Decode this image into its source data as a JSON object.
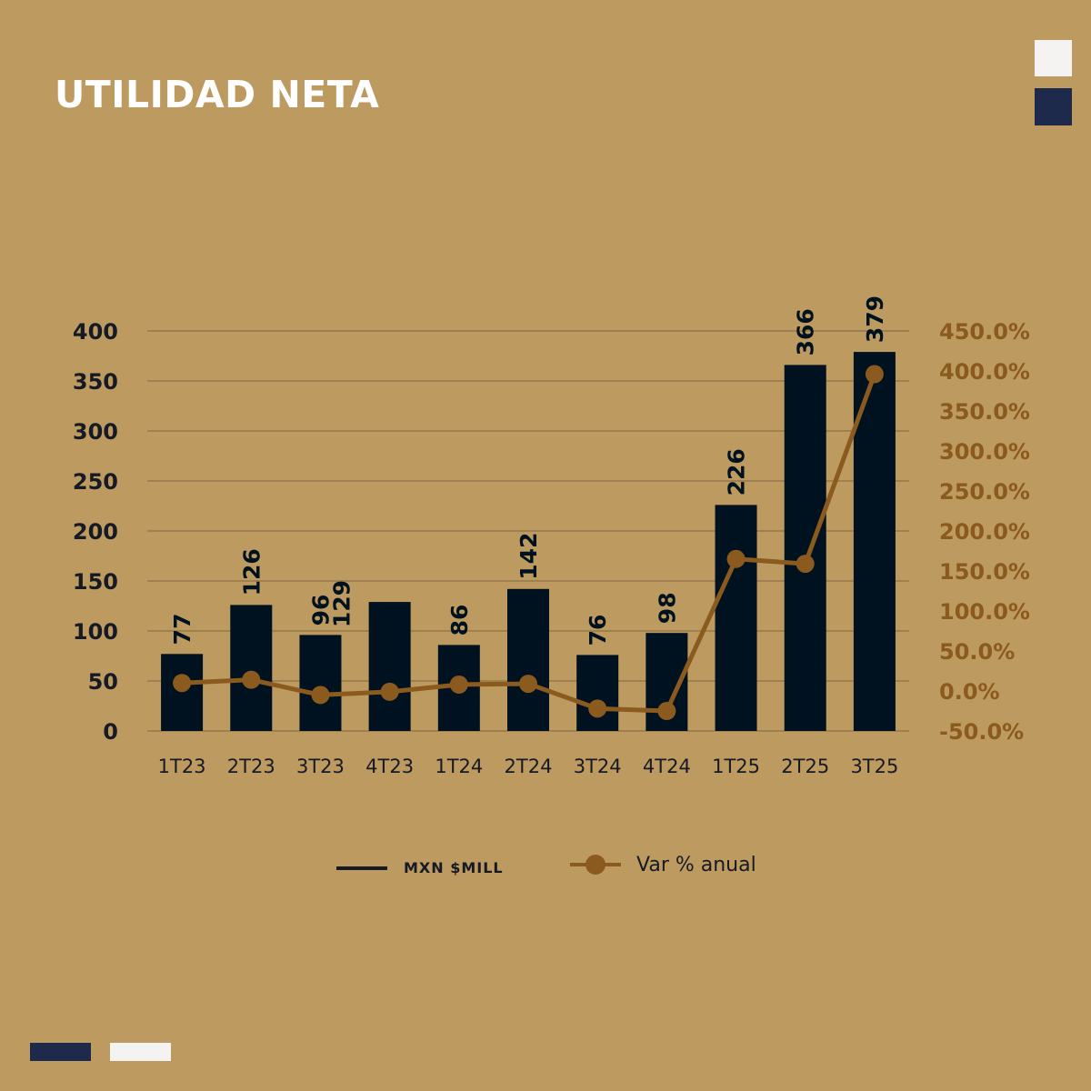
{
  "title": "UTILIDAD NETA",
  "colors": {
    "background": "#bd9a5f",
    "bar": "#00111f",
    "line": "#8a5a1e",
    "axis_left": "#151a25",
    "axis_right": "#8a5a1e",
    "grid": "#9f8150",
    "accent_navy": "#1d2a4b",
    "accent_white": "#f4f3f1"
  },
  "legend": {
    "bar_label": "MXN $MILL",
    "line_label": "Var % anual"
  },
  "chart_data": {
    "type": "bar",
    "categories": [
      "1T23",
      "2T23",
      "3T23",
      "4T23",
      "1T24",
      "2T24",
      "3T24",
      "4T24",
      "1T25",
      "2T25",
      "3T25"
    ],
    "series": [
      {
        "name": "MXN $MILL",
        "type": "bar",
        "axis": "left",
        "values": [
          77,
          126,
          96,
          129,
          86,
          142,
          76,
          98,
          226,
          366,
          379
        ],
        "labels": [
          "77",
          "126",
          "96",
          "129",
          "86",
          "142",
          "76",
          "98",
          "226",
          "366",
          "379"
        ]
      },
      {
        "name": "Var % anual",
        "type": "line",
        "axis": "right",
        "values": [
          10,
          14,
          -5,
          -1,
          8,
          9,
          -22,
          -25,
          165,
          159,
          396
        ]
      }
    ],
    "y_left": {
      "min": 0,
      "max": 400,
      "ticks": [
        "0",
        "50",
        "100",
        "150",
        "200",
        "250",
        "300",
        "350",
        "400"
      ]
    },
    "y_right": {
      "min": -50,
      "max": 450,
      "ticks": [
        "-50.0%",
        "0.0%",
        "50.0%",
        "100.0%",
        "150.0%",
        "200.0%",
        "250.0%",
        "300.0%",
        "350.0%",
        "400.0%",
        "450.0%"
      ]
    },
    "grid": true,
    "legend_position": "bottom"
  }
}
